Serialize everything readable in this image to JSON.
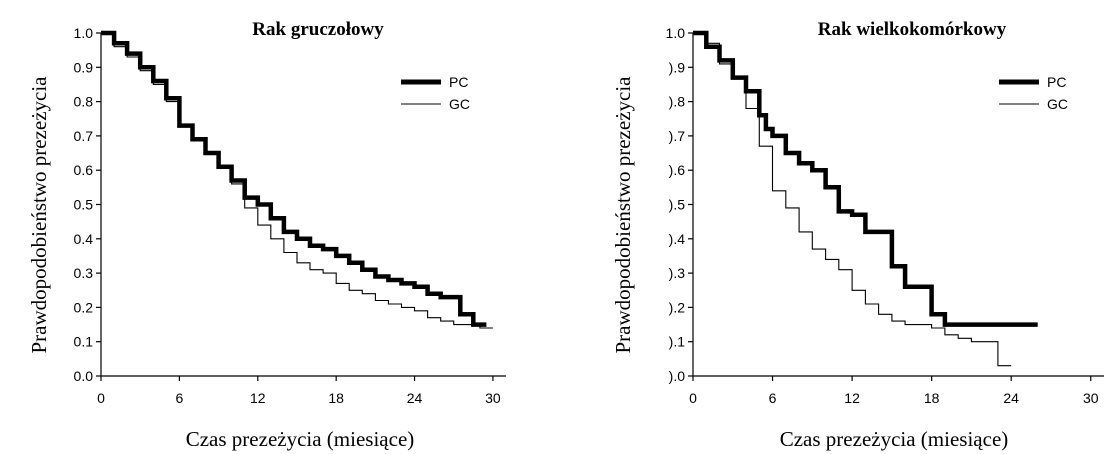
{
  "chart_data": [
    {
      "type": "line",
      "title": "Rak gruczołowy",
      "xlabel": "Czas prezeżycia (miesiące)",
      "ylabel": "Prawdopodobieństwo prezeżycia",
      "xlim": [
        0,
        31
      ],
      "ylim": [
        0,
        1.0
      ],
      "xticks": [
        "0",
        "6",
        "12",
        "18",
        "24",
        "30"
      ],
      "yticks": [
        "0.0",
        "0.1",
        "0.2",
        "0.3",
        "0.4",
        "0.5",
        "0.6",
        "0.7",
        "0.8",
        "0.9",
        "1.0"
      ],
      "legend_position": "top-right",
      "series": [
        {
          "name": "PC",
          "style": "thick",
          "color": "#000000",
          "x": [
            0,
            1,
            2,
            3,
            4,
            5,
            6,
            7,
            8,
            9,
            10,
            11,
            12,
            13,
            14,
            15,
            16,
            17,
            18,
            19,
            20,
            21,
            22,
            23,
            24,
            25,
            26,
            27,
            27.5,
            28.5,
            29.5
          ],
          "y": [
            1.0,
            0.97,
            0.94,
            0.9,
            0.86,
            0.81,
            0.73,
            0.69,
            0.65,
            0.61,
            0.57,
            0.52,
            0.5,
            0.46,
            0.42,
            0.4,
            0.38,
            0.37,
            0.35,
            0.33,
            0.31,
            0.29,
            0.28,
            0.27,
            0.26,
            0.24,
            0.23,
            0.23,
            0.18,
            0.15,
            0.15
          ]
        },
        {
          "name": "GC",
          "style": "thin",
          "color": "#000000",
          "x": [
            0,
            1,
            2,
            3,
            4,
            5,
            6,
            7,
            8,
            9,
            10,
            11,
            12,
            13,
            14,
            15,
            16,
            17,
            18,
            19,
            20,
            21,
            22,
            23,
            24,
            25,
            26,
            27,
            28,
            29,
            30
          ],
          "y": [
            1.0,
            0.96,
            0.93,
            0.89,
            0.85,
            0.8,
            0.73,
            0.69,
            0.65,
            0.61,
            0.56,
            0.49,
            0.44,
            0.4,
            0.36,
            0.33,
            0.31,
            0.3,
            0.27,
            0.25,
            0.24,
            0.22,
            0.21,
            0.2,
            0.19,
            0.17,
            0.16,
            0.15,
            0.15,
            0.14,
            0.14
          ]
        }
      ]
    },
    {
      "type": "line",
      "title": "Rak wielkokomórkowy",
      "xlabel": "Czas prezeżycia (miesiące)",
      "ylabel": "Prawdopodobieństwo prezeżycia",
      "xlim": [
        0,
        31
      ],
      "ylim": [
        0,
        1.0
      ],
      "xticks": [
        "0",
        "6",
        "12",
        "18",
        "24",
        "30"
      ],
      "yticks": [
        ").0",
        ").1",
        ").2",
        ").3",
        ").4",
        ").5",
        ").6",
        ").7",
        ").8",
        ").9",
        "1.0"
      ],
      "legend_position": "top-right",
      "series": [
        {
          "name": "PC",
          "style": "thick",
          "color": "#000000",
          "x": [
            0,
            0.7,
            1,
            2,
            3,
            4,
            5,
            5.5,
            6,
            7,
            8,
            9,
            10,
            11,
            12,
            13,
            14,
            15,
            16,
            17,
            18,
            19,
            20,
            22,
            24,
            26
          ],
          "y": [
            1.0,
            1.0,
            0.96,
            0.92,
            0.87,
            0.83,
            0.76,
            0.72,
            0.7,
            0.65,
            0.62,
            0.6,
            0.55,
            0.48,
            0.47,
            0.42,
            0.42,
            0.32,
            0.26,
            0.26,
            0.18,
            0.15,
            0.15,
            0.15,
            0.15,
            0.15
          ]
        },
        {
          "name": "GC",
          "style": "thin",
          "color": "#000000",
          "x": [
            0,
            1,
            2,
            3,
            4,
            5,
            6,
            7,
            8,
            9,
            10,
            11,
            12,
            13,
            14,
            15,
            16,
            17,
            18,
            19,
            20,
            21,
            22,
            23,
            24
          ],
          "y": [
            1.0,
            0.97,
            0.91,
            0.87,
            0.78,
            0.67,
            0.54,
            0.49,
            0.42,
            0.37,
            0.34,
            0.31,
            0.25,
            0.21,
            0.18,
            0.16,
            0.15,
            0.15,
            0.14,
            0.12,
            0.11,
            0.1,
            0.1,
            0.03,
            0.03
          ]
        }
      ]
    }
  ]
}
